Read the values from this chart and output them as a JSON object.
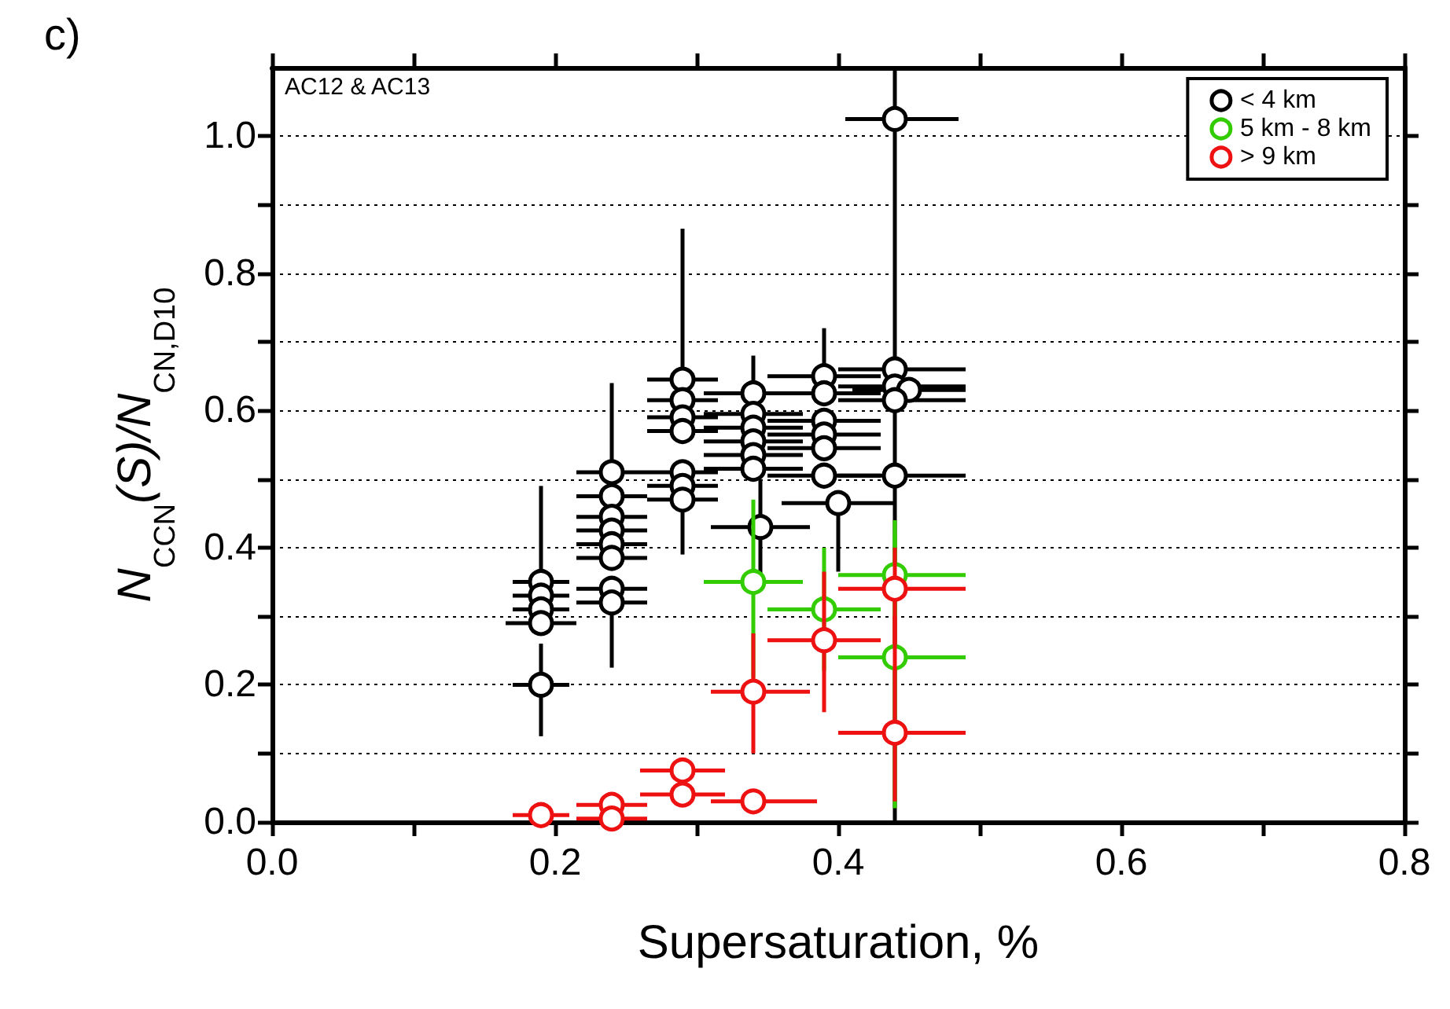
{
  "chart_data": {
    "type": "scatter",
    "xlabel": "Supersaturation, %",
    "ylabel": "N$_{CCN}$(S)/N$_{CN,D10}$",
    "annotations": [
      "c)",
      "AC12 & AC13"
    ],
    "xlim": [
      0,
      0.8
    ],
    "ylim": [
      0,
      1.1
    ],
    "xticks": [
      {
        "value": 0,
        "label": "0.0"
      },
      {
        "value": 0.1,
        "label": null
      },
      {
        "value": 0.2,
        "label": "0.2"
      },
      {
        "value": 0.3,
        "label": null
      },
      {
        "value": 0.4,
        "label": "0.4"
      },
      {
        "value": 0.5,
        "label": null
      },
      {
        "value": 0.6,
        "label": "0.6"
      },
      {
        "value": 0.7,
        "label": null
      },
      {
        "value": 0.8,
        "label": "0.8"
      }
    ],
    "yticks": [
      {
        "value": 0,
        "label": "0.0"
      },
      {
        "value": 0.1,
        "label": null
      },
      {
        "value": 0.2,
        "label": "0.2"
      },
      {
        "value": 0.3,
        "label": null
      },
      {
        "value": 0.4,
        "label": "0.4"
      },
      {
        "value": 0.5,
        "label": null
      },
      {
        "value": 0.6,
        "label": "0.6"
      },
      {
        "value": 0.7,
        "label": null
      },
      {
        "value": 0.8,
        "label": "0.8"
      },
      {
        "value": 0.9,
        "label": null
      },
      {
        "value": 1.0,
        "label": "1.0"
      }
    ],
    "grid": "y",
    "legend": "top right",
    "marker": "circle",
    "series": [
      {
        "name": "< 4 km",
        "color": "#000000",
        "x": [
          0.19,
          0.19,
          0.19,
          0.19,
          0.19,
          0.24,
          0.24,
          0.24,
          0.24,
          0.24,
          0.24,
          0.24,
          0.24,
          0.29,
          0.29,
          0.29,
          0.29,
          0.29,
          0.29,
          0.29,
          0.34,
          0.34,
          0.34,
          0.34,
          0.34,
          0.34,
          0.345,
          0.39,
          0.39,
          0.39,
          0.39,
          0.39,
          0.39,
          0.4,
          0.44,
          0.44,
          0.44,
          0.45,
          0.44,
          0.44
        ],
        "values": [
          0.35,
          0.33,
          0.31,
          0.29,
          0.2,
          0.51,
          0.475,
          0.445,
          0.425,
          0.405,
          0.385,
          0.34,
          0.32,
          0.645,
          0.615,
          0.59,
          0.57,
          0.51,
          0.49,
          0.47,
          0.625,
          0.595,
          0.575,
          0.555,
          0.535,
          0.515,
          0.43,
          0.65,
          0.625,
          0.585,
          0.565,
          0.545,
          0.505,
          0.465,
          1.025,
          0.66,
          0.635,
          0.63,
          0.615,
          0.505
        ],
        "errors": [
          [
            0.35,
            0.49
          ],
          null,
          null,
          null,
          [
            0.125,
            0.26
          ],
          [
            0.51,
            0.64
          ],
          null,
          null,
          null,
          null,
          null,
          null,
          [
            0.225,
            0.32
          ],
          [
            0.645,
            0.865
          ],
          null,
          null,
          null,
          null,
          null,
          [
            0.39,
            0.47
          ],
          [
            0.625,
            0.68
          ],
          null,
          null,
          null,
          null,
          null,
          [
            0.36,
            0.5
          ],
          [
            0.65,
            0.72
          ],
          null,
          null,
          null,
          null,
          null,
          [
            0.365,
            0.465
          ],
          [
            0,
            1.1
          ],
          null,
          null,
          null,
          null,
          null
        ],
        "xerrors": [
          [
            0.17,
            0.21
          ],
          [
            0.17,
            0.21
          ],
          [
            0.17,
            0.21
          ],
          [
            0.165,
            0.215
          ],
          [
            0.17,
            0.21
          ],
          [
            0.215,
            0.265
          ],
          [
            0.215,
            0.265
          ],
          [
            0.215,
            0.265
          ],
          [
            0.215,
            0.265
          ],
          [
            0.215,
            0.265
          ],
          [
            0.215,
            0.265
          ],
          [
            0.215,
            0.265
          ],
          [
            0.215,
            0.265
          ],
          [
            0.265,
            0.315
          ],
          [
            0.265,
            0.315
          ],
          [
            0.265,
            0.315
          ],
          [
            0.265,
            0.315
          ],
          [
            0.265,
            0.315
          ],
          [
            0.265,
            0.315
          ],
          [
            0.265,
            0.315
          ],
          [
            0.305,
            0.375
          ],
          [
            0.305,
            0.375
          ],
          [
            0.305,
            0.375
          ],
          [
            0.305,
            0.375
          ],
          [
            0.305,
            0.375
          ],
          [
            0.305,
            0.375
          ],
          [
            0.31,
            0.38
          ],
          [
            0.35,
            0.43
          ],
          [
            0.35,
            0.43
          ],
          [
            0.35,
            0.43
          ],
          [
            0.35,
            0.43
          ],
          [
            0.35,
            0.43
          ],
          [
            0.35,
            0.43
          ],
          [
            0.36,
            0.44
          ],
          [
            0.405,
            0.485
          ],
          [
            0.4,
            0.49
          ],
          [
            0.4,
            0.49
          ],
          [
            0.41,
            0.49
          ],
          [
            0.4,
            0.49
          ],
          [
            0.4,
            0.49
          ]
        ]
      },
      {
        "name": "5 km - 8 km",
        "color": "#33cc00",
        "x": [
          0.34,
          0.39,
          0.44,
          0.44
        ],
        "values": [
          0.35,
          0.31,
          0.36,
          0.24
        ],
        "errors": [
          [
            0.21,
            0.47
          ],
          [
            0.22,
            0.4
          ],
          [
            0.3,
            0.44
          ],
          [
            0.02,
            0.42
          ]
        ],
        "xerrors": [
          [
            0.305,
            0.375
          ],
          [
            0.35,
            0.43
          ],
          [
            0.4,
            0.49
          ],
          [
            0.4,
            0.49
          ]
        ]
      },
      {
        "name": "> 9 km",
        "color": "#ee1111",
        "x": [
          0.19,
          0.24,
          0.24,
          0.29,
          0.29,
          0.34,
          0.34,
          0.39,
          0.44,
          0.44
        ],
        "values": [
          0.01,
          0.025,
          0.005,
          0.075,
          0.04,
          0.03,
          0.19,
          0.265,
          0.34,
          0.13
        ],
        "errors": [
          [
            0,
            0.02
          ],
          [
            0.01,
            0.04
          ],
          [
            0,
            0.015
          ],
          [
            0.06,
            0.09
          ],
          [
            0.025,
            0.055
          ],
          [
            0.02,
            0.04
          ],
          [
            0.1,
            0.275
          ],
          [
            0.16,
            0.365
          ],
          [
            0.26,
            0.4
          ],
          [
            0.03,
            0.3
          ]
        ],
        "xerrors": [
          [
            0.17,
            0.21
          ],
          [
            0.215,
            0.265
          ],
          [
            0.215,
            0.265
          ],
          [
            0.26,
            0.32
          ],
          [
            0.26,
            0.32
          ],
          [
            0.31,
            0.385
          ],
          [
            0.31,
            0.38
          ],
          [
            0.35,
            0.43
          ],
          [
            0.4,
            0.49
          ],
          [
            0.4,
            0.49
          ]
        ]
      }
    ]
  }
}
